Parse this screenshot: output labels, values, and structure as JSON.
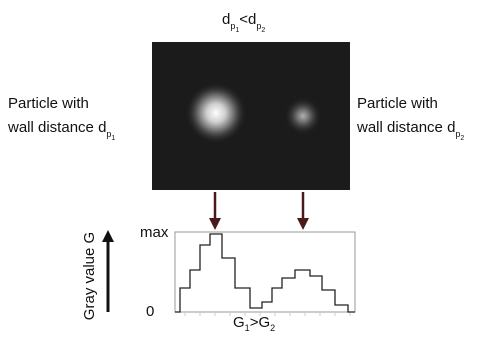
{
  "top_label": {
    "left": {
      "d": "d",
      "p": "p",
      "n": "1"
    },
    "operator": "<",
    "right": {
      "d": "d",
      "p": "p",
      "n": "2"
    }
  },
  "left_particle": {
    "line1": "Particle with",
    "line2": "wall distance",
    "d": "d",
    "p": "p",
    "n": "1"
  },
  "right_particle": {
    "line1": "Particle with",
    "line2": "wall distance",
    "d": "d",
    "p": "p",
    "n": "2"
  },
  "profile": {
    "y_label": "Gray value G",
    "max_label": "max",
    "zero_label": "0",
    "bottom_label": {
      "left": {
        "g": "G",
        "n": "1"
      },
      "operator": ">",
      "right": {
        "g": "G",
        "n": "2"
      }
    }
  }
}
